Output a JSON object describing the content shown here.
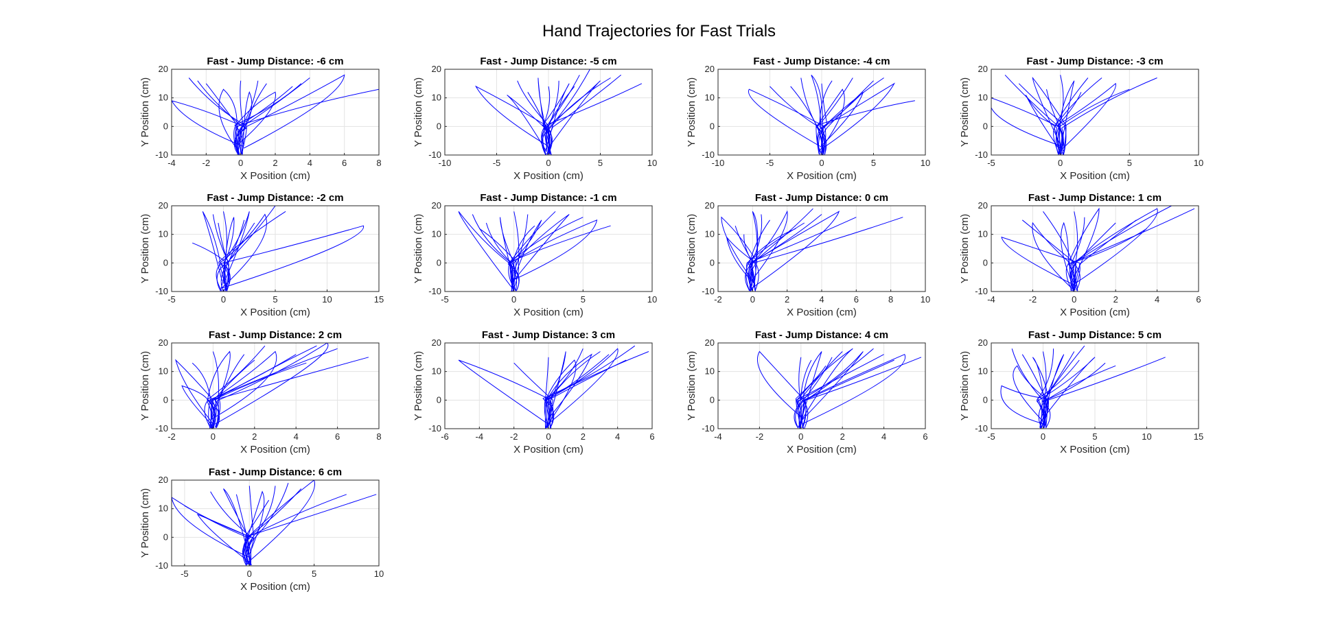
{
  "figure": {
    "title": "Hand Trajectories for Fast Trials"
  },
  "style": {
    "line_color": "#0000ff",
    "grid_color": "#e3e3e3",
    "axis_color": "#262626"
  },
  "chart_data": [
    {
      "type": "line",
      "title": "Fast - Jump Distance: -6 cm",
      "xlabel": "X Position (cm)",
      "ylabel": "Y Position (cm)",
      "xlim": [
        -4,
        8
      ],
      "ylim": [
        -10,
        20
      ],
      "xticks": [
        -4,
        -2,
        0,
        2,
        4,
        6,
        8
      ],
      "yticks": [
        -10,
        0,
        10,
        20
      ],
      "grid": true,
      "endpoints": [
        [
          -4,
          9
        ],
        [
          -3,
          17
        ],
        [
          -2,
          15
        ],
        [
          -1,
          13
        ],
        [
          0,
          16
        ],
        [
          1,
          16
        ],
        [
          2,
          12
        ],
        [
          3,
          14
        ],
        [
          4,
          17
        ],
        [
          6,
          18
        ],
        [
          8,
          13
        ],
        [
          -2.5,
          16
        ],
        [
          0.5,
          12
        ],
        [
          1.5,
          15
        ],
        [
          3.5,
          15
        ]
      ]
    },
    {
      "type": "line",
      "title": "Fast - Jump Distance: -5 cm",
      "xlabel": "X Position (cm)",
      "ylabel": "Y Position (cm)",
      "xlim": [
        -10,
        10
      ],
      "ylim": [
        -10,
        20
      ],
      "xticks": [
        -10,
        -5,
        0,
        5,
        10
      ],
      "yticks": [
        -10,
        0,
        10,
        20
      ],
      "grid": true,
      "endpoints": [
        [
          -7,
          14
        ],
        [
          -3,
          16
        ],
        [
          -2,
          12
        ],
        [
          -1,
          17
        ],
        [
          0,
          14
        ],
        [
          1,
          16
        ],
        [
          2,
          15
        ],
        [
          3,
          18
        ],
        [
          4,
          20
        ],
        [
          5,
          16
        ],
        [
          7,
          18
        ],
        [
          9,
          15
        ],
        [
          -4,
          11
        ],
        [
          2.5,
          14
        ],
        [
          6,
          17
        ]
      ]
    },
    {
      "type": "line",
      "title": "Fast - Jump Distance: -4 cm",
      "xlabel": "X Position (cm)",
      "ylabel": "Y Position (cm)",
      "xlim": [
        -10,
        10
      ],
      "ylim": [
        -10,
        20
      ],
      "xticks": [
        -10,
        -5,
        0,
        5,
        10
      ],
      "yticks": [
        -10,
        0,
        10,
        20
      ],
      "grid": true,
      "endpoints": [
        [
          -7,
          13
        ],
        [
          -5,
          14
        ],
        [
          -3,
          14
        ],
        [
          -1,
          18
        ],
        [
          0,
          15
        ],
        [
          1,
          16
        ],
        [
          2,
          13
        ],
        [
          3,
          17
        ],
        [
          5,
          16
        ],
        [
          7,
          15
        ],
        [
          9,
          9
        ],
        [
          -2,
          17
        ],
        [
          4,
          12
        ],
        [
          6,
          17
        ]
      ]
    },
    {
      "type": "line",
      "title": "Fast - Jump Distance: -3 cm",
      "xlabel": "X Position (cm)",
      "ylabel": "Y Position (cm)",
      "xlim": [
        -5,
        10
      ],
      "ylim": [
        -10,
        20
      ],
      "xticks": [
        -5,
        0,
        5,
        10
      ],
      "yticks": [
        -10,
        0,
        10,
        20
      ],
      "grid": true,
      "endpoints": [
        [
          -5,
          10
        ],
        [
          -4,
          18
        ],
        [
          -3,
          15
        ],
        [
          -2,
          17
        ],
        [
          -1,
          13
        ],
        [
          0,
          18
        ],
        [
          1,
          16
        ],
        [
          2,
          17
        ],
        [
          3,
          17
        ],
        [
          4,
          15
        ],
        [
          5,
          13
        ],
        [
          7,
          17
        ],
        [
          -2.5,
          11
        ],
        [
          1.5,
          12
        ]
      ]
    },
    {
      "type": "line",
      "title": "Fast - Jump Distance: -2 cm",
      "xlabel": "X Position (cm)",
      "ylabel": "Y Position (cm)",
      "xlim": [
        -5,
        15
      ],
      "ylim": [
        -10,
        20
      ],
      "xticks": [
        -5,
        0,
        5,
        10,
        15
      ],
      "yticks": [
        -10,
        0,
        10,
        20
      ],
      "grid": true,
      "endpoints": [
        [
          -2,
          18
        ],
        [
          -1,
          17
        ],
        [
          0,
          18
        ],
        [
          1,
          16
        ],
        [
          2,
          15
        ],
        [
          3,
          14
        ],
        [
          4,
          17
        ],
        [
          5,
          20
        ],
        [
          6,
          18
        ],
        [
          13.5,
          13
        ],
        [
          -3,
          7
        ],
        [
          -0.5,
          14
        ],
        [
          2.5,
          18
        ]
      ]
    },
    {
      "type": "line",
      "title": "Fast - Jump Distance: -1 cm",
      "xlabel": "X Position (cm)",
      "ylabel": "Y Position (cm)",
      "xlim": [
        -5,
        10
      ],
      "ylim": [
        -10,
        20
      ],
      "xticks": [
        -5,
        0,
        5,
        10
      ],
      "yticks": [
        -10,
        0,
        10,
        20
      ],
      "grid": true,
      "endpoints": [
        [
          -4,
          18
        ],
        [
          -3,
          17
        ],
        [
          -2,
          14
        ],
        [
          -1,
          16
        ],
        [
          0,
          18
        ],
        [
          1,
          17
        ],
        [
          2,
          15
        ],
        [
          3,
          18
        ],
        [
          5,
          16
        ],
        [
          6,
          15
        ],
        [
          7,
          13
        ],
        [
          -2.5,
          12
        ],
        [
          4,
          17
        ],
        [
          1.5,
          13
        ]
      ]
    },
    {
      "type": "line",
      "title": "Fast - Jump Distance: 0 cm",
      "xlabel": "X Position (cm)",
      "ylabel": "Y Position (cm)",
      "xlim": [
        -2,
        10
      ],
      "ylim": [
        -10,
        20
      ],
      "xticks": [
        -2,
        0,
        2,
        4,
        6,
        8,
        10
      ],
      "yticks": [
        -10,
        0,
        10,
        20
      ],
      "grid": true,
      "endpoints": [
        [
          -1.8,
          16
        ],
        [
          -1,
          13
        ],
        [
          -0.5,
          10
        ],
        [
          0,
          18
        ],
        [
          0.5,
          17
        ],
        [
          1,
          15
        ],
        [
          2,
          18
        ],
        [
          3,
          14
        ],
        [
          4,
          17
        ],
        [
          5,
          18
        ],
        [
          6,
          16
        ],
        [
          8.7,
          16
        ],
        [
          -1.5,
          9
        ],
        [
          2.5,
          12
        ],
        [
          3.5,
          19
        ]
      ]
    },
    {
      "type": "line",
      "title": "Fast - Jump Distance: 1 cm",
      "xlabel": "X Position (cm)",
      "ylabel": "Y Position (cm)",
      "xlim": [
        -4,
        6
      ],
      "ylim": [
        -10,
        20
      ],
      "xticks": [
        -4,
        -2,
        0,
        2,
        4,
        6
      ],
      "yticks": [
        -10,
        0,
        10,
        20
      ],
      "grid": true,
      "endpoints": [
        [
          -3.5,
          9
        ],
        [
          -2.5,
          15
        ],
        [
          -1.5,
          18
        ],
        [
          -0.5,
          14
        ],
        [
          0,
          18
        ],
        [
          0.5,
          16
        ],
        [
          1.2,
          19
        ],
        [
          2,
          14
        ],
        [
          3,
          15
        ],
        [
          4,
          19
        ],
        [
          4.7,
          20
        ],
        [
          5.8,
          19
        ],
        [
          -2,
          14
        ],
        [
          3.5,
          12
        ]
      ]
    },
    {
      "type": "line",
      "title": "Fast - Jump Distance: 2 cm",
      "xlabel": "X Position (cm)",
      "ylabel": "Y Position (cm)",
      "xlim": [
        -2,
        8
      ],
      "ylim": [
        -10,
        20
      ],
      "xticks": [
        -2,
        0,
        2,
        4,
        6,
        8
      ],
      "yticks": [
        -10,
        0,
        10,
        20
      ],
      "grid": true,
      "endpoints": [
        [
          -1.8,
          14
        ],
        [
          -1,
          13
        ],
        [
          0,
          17
        ],
        [
          0.8,
          17
        ],
        [
          1.5,
          16
        ],
        [
          2,
          14
        ],
        [
          3,
          17
        ],
        [
          4,
          16
        ],
        [
          5,
          19
        ],
        [
          5.5,
          20
        ],
        [
          6,
          18
        ],
        [
          7.5,
          15
        ],
        [
          -1.5,
          5
        ],
        [
          2.5,
          19
        ],
        [
          4.5,
          13
        ]
      ]
    },
    {
      "type": "line",
      "title": "Fast - Jump Distance: 3 cm",
      "xlabel": "X Position (cm)",
      "ylabel": "Y Position (cm)",
      "xlim": [
        -6,
        6
      ],
      "ylim": [
        -10,
        20
      ],
      "xticks": [
        -6,
        -4,
        -2,
        0,
        2,
        4,
        6
      ],
      "yticks": [
        -10,
        0,
        10,
        20
      ],
      "grid": true,
      "endpoints": [
        [
          -5.2,
          14
        ],
        [
          -2,
          13
        ],
        [
          0,
          15
        ],
        [
          1,
          17
        ],
        [
          2,
          18
        ],
        [
          3,
          17
        ],
        [
          4,
          18
        ],
        [
          5,
          19
        ],
        [
          5.8,
          17
        ],
        [
          1.5,
          14
        ],
        [
          3.5,
          16
        ],
        [
          4.5,
          14
        ],
        [
          2.5,
          16
        ]
      ]
    },
    {
      "type": "line",
      "title": "Fast - Jump Distance: 4 cm",
      "xlabel": "X Position (cm)",
      "ylabel": "Y Position (cm)",
      "xlim": [
        -4,
        6
      ],
      "ylim": [
        -10,
        20
      ],
      "xticks": [
        -4,
        -2,
        0,
        2,
        4,
        6
      ],
      "yticks": [
        -10,
        0,
        10,
        20
      ],
      "grid": true,
      "endpoints": [
        [
          -2,
          17
        ],
        [
          0,
          15
        ],
        [
          0.5,
          14
        ],
        [
          1,
          17
        ],
        [
          1.5,
          15
        ],
        [
          2,
          17
        ],
        [
          3,
          17
        ],
        [
          3.5,
          18
        ],
        [
          4,
          16
        ],
        [
          5,
          16
        ],
        [
          5.8,
          15
        ],
        [
          4.5,
          14
        ],
        [
          2.5,
          18
        ],
        [
          1.2,
          12
        ]
      ]
    },
    {
      "type": "line",
      "title": "Fast - Jump Distance: 5 cm",
      "xlabel": "X Position (cm)",
      "ylabel": "Y Position (cm)",
      "xlim": [
        -5,
        15
      ],
      "ylim": [
        -10,
        20
      ],
      "xticks": [
        -5,
        0,
        5,
        10,
        15
      ],
      "yticks": [
        -10,
        0,
        10,
        20
      ],
      "grid": true,
      "endpoints": [
        [
          -4,
          5
        ],
        [
          -3,
          18
        ],
        [
          -2,
          16
        ],
        [
          -1,
          15
        ],
        [
          0,
          17
        ],
        [
          1,
          18
        ],
        [
          2,
          16
        ],
        [
          3,
          17
        ],
        [
          4,
          19
        ],
        [
          5,
          15
        ],
        [
          7,
          12
        ],
        [
          11.8,
          15
        ],
        [
          -2.5,
          12
        ],
        [
          3.5,
          14
        ],
        [
          6,
          13
        ]
      ]
    },
    {
      "type": "line",
      "title": "Fast - Jump Distance: 6 cm",
      "xlabel": "X Position (cm)",
      "ylabel": "Y Position (cm)",
      "xlim": [
        -6,
        10
      ],
      "ylim": [
        -10,
        20
      ],
      "xticks": [
        -5,
        0,
        5,
        10
      ],
      "yticks": [
        -10,
        0,
        10,
        20
      ],
      "grid": true,
      "endpoints": [
        [
          -6,
          14
        ],
        [
          -5,
          11
        ],
        [
          -3,
          16
        ],
        [
          -2,
          17
        ],
        [
          -1,
          15
        ],
        [
          0,
          18
        ],
        [
          1,
          16
        ],
        [
          2,
          18
        ],
        [
          3,
          19
        ],
        [
          5,
          20
        ],
        [
          7.5,
          15
        ],
        [
          9.8,
          15
        ],
        [
          -4,
          8
        ],
        [
          1.5,
          13
        ],
        [
          4,
          17
        ]
      ]
    }
  ]
}
